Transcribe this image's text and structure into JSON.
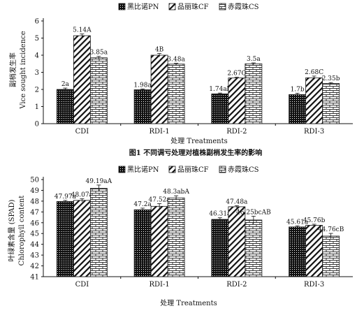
{
  "colors": {
    "bar_stroke": "#111111",
    "axis": "#111111",
    "background": "#ffffff"
  },
  "fig1_caption": "图1  不同调亏处理对植株副梢发生率的影响",
  "chart_data": [
    {
      "type": "bar",
      "categories": [
        "CDI",
        "RDI-1",
        "RDI-2",
        "RDI-3"
      ],
      "series": [
        {
          "name": "黑比诺PN",
          "pattern": "dense-dots",
          "values": [
            2.0,
            1.98,
            1.74,
            1.7
          ],
          "errors": [
            0.08,
            0.05,
            0.05,
            0.08
          ],
          "labels": [
            "2a",
            "1.98a",
            "1.74ab",
            "1.7b"
          ]
        },
        {
          "name": "品丽珠CF",
          "pattern": "diagonal-hatch",
          "values": [
            5.14,
            4.0,
            2.67,
            2.68
          ],
          "errors": [
            0.1,
            0.1,
            0.05,
            0.1
          ],
          "labels": [
            "5.14A",
            "4B",
            "2.67C",
            "2.68C"
          ]
        },
        {
          "name": "赤霞珠CS",
          "pattern": "brick",
          "values": [
            3.85,
            3.48,
            3.5,
            2.35
          ],
          "errors": [
            0.08,
            0.05,
            0.05,
            0.05
          ],
          "labels": [
            "3.85a",
            "3.48a",
            "3.5a",
            "2.35b"
          ]
        }
      ],
      "title": "",
      "xlabel": "处理 Treatments",
      "ylabel": "副梢发生率",
      "ylabel2": "Vice sought incidence",
      "ylim": [
        0,
        6
      ],
      "yticks": [
        0,
        1,
        2,
        3,
        4,
        5,
        6
      ],
      "legend": "top",
      "grid": false
    },
    {
      "type": "bar",
      "categories": [
        "CDI",
        "RDI-1",
        "RDI-2",
        "RDI-3"
      ],
      "series": [
        {
          "name": "黑比诺PN",
          "pattern": "dense-dots",
          "values": [
            47.97,
            47.2,
            46.31,
            45.61
          ],
          "errors": [
            0.1,
            0.15,
            0.15,
            0.1
          ],
          "labels": [
            "47.97a",
            "47.2a",
            "46.31a",
            "45.61a"
          ]
        },
        {
          "name": "品丽珠CF",
          "pattern": "diagonal-hatch",
          "values": [
            48.07,
            47.52,
            47.48,
            45.76
          ],
          "errors": [
            0.15,
            0.25,
            0.1,
            0.1
          ],
          "labels": [
            "48.07a",
            "47.52a",
            "47.48a",
            "45.76b"
          ]
        },
        {
          "name": "赤霞珠CS",
          "pattern": "brick",
          "values": [
            49.19,
            48.3,
            46.25,
            44.76
          ],
          "errors": [
            0.3,
            0.2,
            0.35,
            0.25
          ],
          "labels": [
            "49.19aA",
            "48.3abA",
            "46.25bcAB",
            "44.76cB"
          ]
        }
      ],
      "title": "",
      "xlabel": "处理 Treatments",
      "ylabel": "叶绿素含量 (SPAD)",
      "ylabel2": "Chlorophyll content",
      "ylim": [
        41,
        50
      ],
      "yticks": [
        41,
        42,
        43,
        44,
        45,
        46,
        47,
        48,
        49,
        50
      ],
      "legend": "top",
      "grid": false
    }
  ]
}
